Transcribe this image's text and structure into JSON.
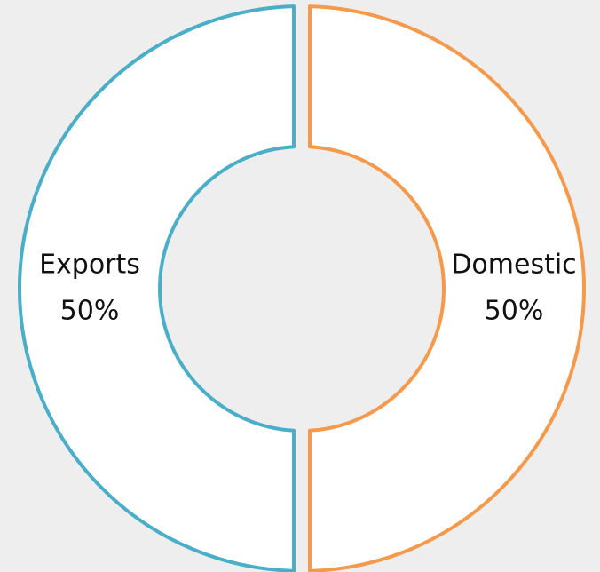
{
  "chart_data": {
    "type": "donut",
    "categories": [
      "Domestic",
      "Exports"
    ],
    "values": [
      50,
      50
    ],
    "value_labels": [
      "50%",
      "50%"
    ],
    "colors": [
      "#f59a4c",
      "#4aaec8"
    ]
  }
}
